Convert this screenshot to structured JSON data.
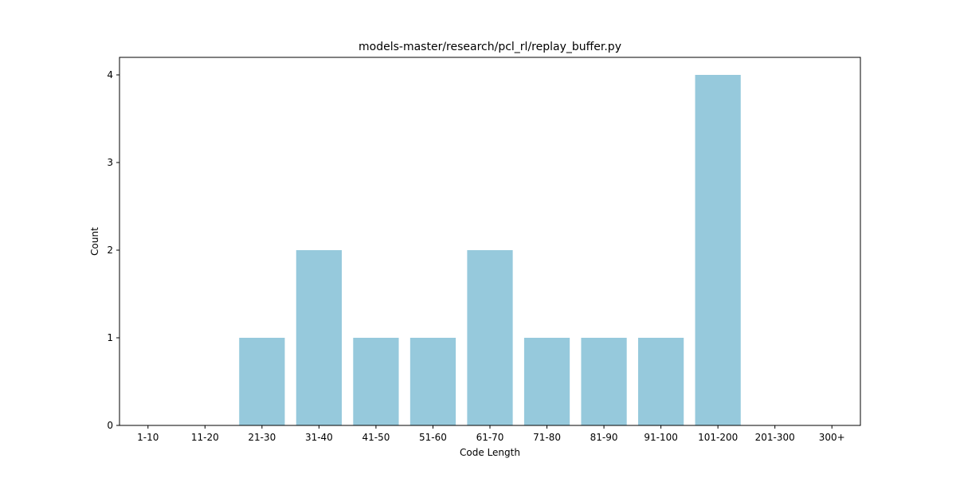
{
  "chart_data": {
    "type": "bar",
    "title": "models-master/research/pcl_rl/replay_buffer.py",
    "xlabel": "Code Length",
    "ylabel": "Count",
    "categories": [
      "1-10",
      "11-20",
      "21-30",
      "31-40",
      "41-50",
      "51-60",
      "61-70",
      "71-80",
      "81-90",
      "91-100",
      "101-200",
      "201-300",
      "300+"
    ],
    "values": [
      0,
      0,
      1,
      2,
      1,
      1,
      2,
      1,
      1,
      1,
      4,
      0,
      0
    ],
    "ylim": [
      0,
      4.2
    ],
    "yticks": [
      0,
      1,
      2,
      3,
      4
    ],
    "bar_color": "#96c9dc",
    "grid": false,
    "legend": "none"
  }
}
